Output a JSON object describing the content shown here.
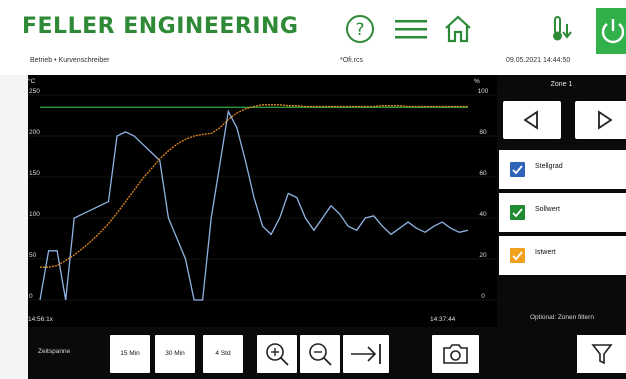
{
  "header": {
    "logo_text": "FELLER ENGINEERING",
    "breadcrumb": "Betrieb • Kurvenschreiber",
    "filename": "*Ofi.rcs",
    "datetime": "09.05.2021 14:44:50",
    "icons": [
      "help-icon",
      "menu-icon",
      "home-icon",
      "thermometer-icon",
      "power-icon"
    ],
    "brand_color": "#2f8a37",
    "power_color": "#32b04a"
  },
  "chart": {
    "left_unit": "°C",
    "right_unit": "%",
    "left_ticks": [
      "250",
      "200",
      "150",
      "100",
      "50",
      "0"
    ],
    "right_ticks": [
      "100",
      "80",
      "60",
      "40",
      "20",
      "0"
    ],
    "start_time": "14:56:1x",
    "end_time": "14:37:44"
  },
  "chart_data": {
    "type": "line",
    "title": "",
    "y_left_label": "°C",
    "y_right_label": "%",
    "ylim_left": [
      0,
      250
    ],
    "ylim_right": [
      0,
      100
    ],
    "x": [
      0,
      2,
      4,
      6,
      8,
      10,
      12,
      14,
      16,
      18,
      20,
      22,
      24,
      26,
      28,
      30,
      32,
      34,
      36,
      38,
      40,
      42,
      44,
      46,
      48,
      50,
      52,
      54,
      56,
      58,
      60,
      62,
      64,
      66,
      68,
      70,
      72,
      74,
      76,
      78,
      80,
      82,
      84,
      86,
      88,
      90,
      92,
      94,
      96,
      98,
      100
    ],
    "series": [
      {
        "name": "Stellgrad",
        "color": "#8fb4e3",
        "axis": "right",
        "values": [
          0,
          24,
          24,
          0,
          40,
          42,
          44,
          46,
          48,
          80,
          82,
          80,
          76,
          72,
          68,
          40,
          30,
          20,
          0,
          0,
          40,
          66,
          92,
          84,
          68,
          50,
          36,
          32,
          40,
          52,
          50,
          40,
          34,
          40,
          46,
          42,
          36,
          34,
          40,
          41,
          36,
          32,
          35,
          38,
          35,
          33,
          36,
          38,
          35,
          33,
          34
        ]
      },
      {
        "name": "Sollwert",
        "color": "#2f9a3a",
        "axis": "left",
        "values": [
          235,
          235,
          235,
          235,
          235,
          235,
          235,
          235,
          235,
          235,
          235,
          235,
          235,
          235,
          235,
          235,
          235,
          235,
          235,
          235,
          235,
          235,
          235,
          235,
          235,
          235,
          235,
          235,
          235,
          235,
          235,
          235,
          235,
          235,
          235,
          235,
          235,
          235,
          235,
          235,
          235,
          235,
          235,
          235,
          235,
          235,
          235,
          235,
          235,
          235,
          235
        ]
      },
      {
        "name": "Istwert",
        "color": "#e08a1e",
        "axis": "left",
        "values": [
          40,
          40,
          42,
          48,
          55,
          63,
          72,
          82,
          93,
          106,
          120,
          134,
          148,
          160,
          172,
          182,
          190,
          196,
          200,
          202,
          203,
          210,
          220,
          228,
          233,
          236,
          238,
          238,
          238,
          237,
          237,
          236,
          236,
          236,
          236,
          236,
          236,
          236,
          236,
          236,
          237,
          237,
          237,
          236,
          236,
          236,
          236,
          236,
          236,
          236,
          236
        ]
      }
    ]
  },
  "panel": {
    "zone_label": "Zone 1",
    "prev_icon": "triangle-left-icon",
    "next_icon": "triangle-right-icon",
    "series": [
      {
        "label": "Stellgrad",
        "color": "#2f63b8"
      },
      {
        "label": "Sollwert",
        "color": "#1f8a32"
      },
      {
        "label": "Istwert",
        "color": "#f2a11c"
      }
    ],
    "optional_label": "Optional: Zonen filtern"
  },
  "toolbar": {
    "zeitspanne_label": "Zeitspanne",
    "range_buttons": [
      "15 Min",
      "30 Min",
      "4 Std"
    ],
    "icons": [
      "zoom-in-icon",
      "zoom-out-icon",
      "jump-to-end-icon",
      "camera-icon",
      "filter-icon"
    ]
  }
}
